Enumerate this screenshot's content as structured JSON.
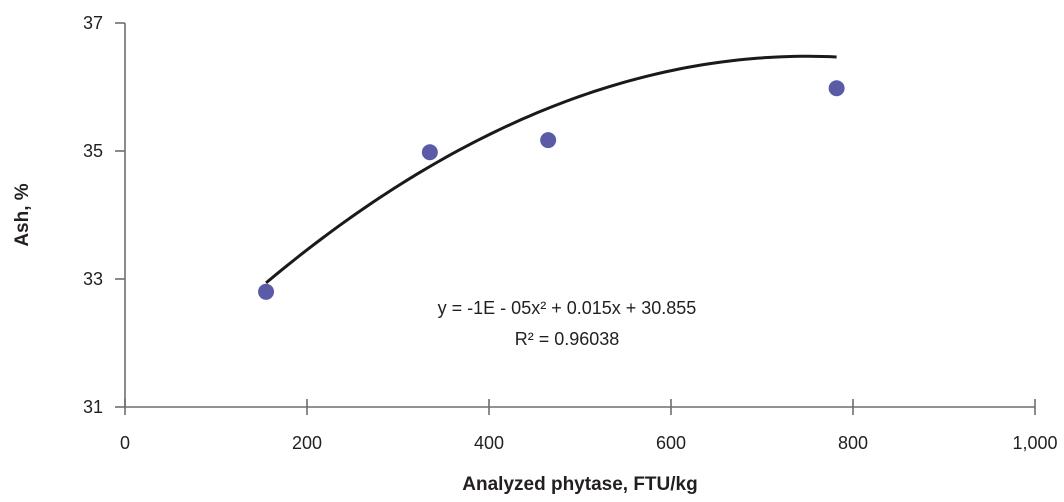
{
  "chart_data": {
    "type": "scatter",
    "xlabel": "Analyzed phytase, FTU/kg",
    "ylabel": "Ash, %",
    "xlim": [
      0,
      1000
    ],
    "ylim": [
      31,
      37
    ],
    "x_ticks": [
      0,
      200,
      400,
      600,
      800,
      1000
    ],
    "x_tick_labels": [
      "0",
      "200",
      "400",
      "600",
      "800",
      "1,000"
    ],
    "y_ticks": [
      31,
      33,
      35,
      37
    ],
    "y_tick_labels": [
      "31",
      "33",
      "35",
      "37"
    ],
    "grid": false,
    "points": [
      {
        "x": 155,
        "y": 32.8
      },
      {
        "x": 335,
        "y": 34.98
      },
      {
        "x": 465,
        "y": 35.17
      },
      {
        "x": 782,
        "y": 35.98
      }
    ],
    "trendline": {
      "type": "polynomial",
      "x_range": [
        155,
        782
      ],
      "equation": "y = -1E - 05x² + 0.015x + 30.855",
      "r_squared": "R² = 0.96038"
    },
    "marker_color": "#5b5aa6",
    "line_color": "#1a1a1a"
  }
}
